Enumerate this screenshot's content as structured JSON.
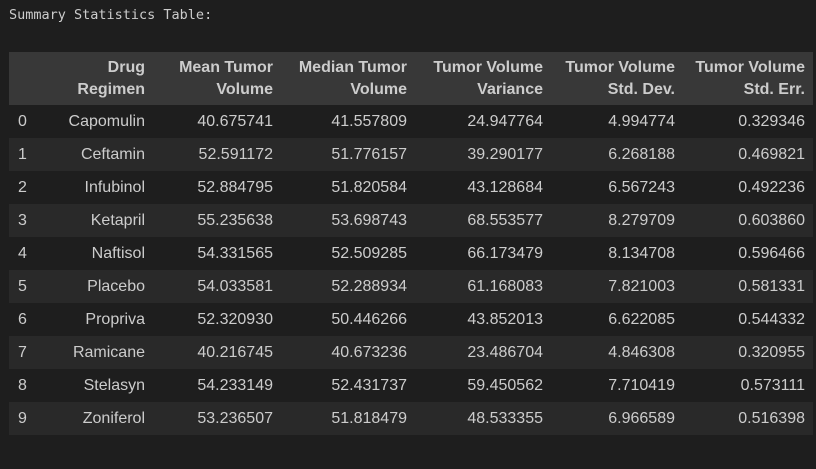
{
  "caption": "Summary Statistics Table:",
  "table": {
    "columns": [
      "",
      "Drug Regimen",
      "Mean Tumor Volume",
      "Median Tumor Volume",
      "Tumor Volume Variance",
      "Tumor Volume Std. Dev.",
      "Tumor Volume Std. Err."
    ],
    "rows": [
      [
        "0",
        "Capomulin",
        "40.675741",
        "41.557809",
        "24.947764",
        "4.994774",
        "0.329346"
      ],
      [
        "1",
        "Ceftamin",
        "52.591172",
        "51.776157",
        "39.290177",
        "6.268188",
        "0.469821"
      ],
      [
        "2",
        "Infubinol",
        "52.884795",
        "51.820584",
        "43.128684",
        "6.567243",
        "0.492236"
      ],
      [
        "3",
        "Ketapril",
        "55.235638",
        "53.698743",
        "68.553577",
        "8.279709",
        "0.603860"
      ],
      [
        "4",
        "Naftisol",
        "54.331565",
        "52.509285",
        "66.173479",
        "8.134708",
        "0.596466"
      ],
      [
        "5",
        "Placebo",
        "54.033581",
        "52.288934",
        "61.168083",
        "7.821003",
        "0.581331"
      ],
      [
        "6",
        "Propriva",
        "52.320930",
        "50.446266",
        "43.852013",
        "6.622085",
        "0.544332"
      ],
      [
        "7",
        "Ramicane",
        "40.216745",
        "40.673236",
        "23.486704",
        "4.846308",
        "0.320955"
      ],
      [
        "8",
        "Stelasyn",
        "54.233149",
        "52.431737",
        "59.450562",
        "7.710419",
        "0.573111"
      ],
      [
        "9",
        "Zoniferol",
        "53.236507",
        "51.818479",
        "48.533355",
        "6.966589",
        "0.516398"
      ]
    ]
  }
}
